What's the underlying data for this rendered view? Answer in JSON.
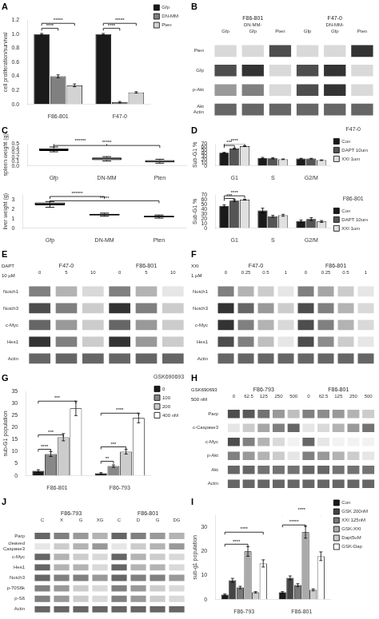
{
  "chart_data": [
    {
      "type": "bar",
      "title": "A",
      "categories": [
        "F86-801",
        "F47-0"
      ],
      "series": [
        {
          "name": "Gfp",
          "color": "#1a1a1a",
          "values": [
            1.0,
            1.0
          ],
          "errors": [
            0.01,
            0.01
          ]
        },
        {
          "name": "DN-MM",
          "color": "#808080",
          "values": [
            0.4,
            0.03
          ],
          "errors": [
            0.02,
            0.01
          ]
        },
        {
          "name": "Pten",
          "color": "#d3d3d3",
          "values": [
            0.27,
            0.17
          ],
          "errors": [
            0.02,
            0.01
          ]
        }
      ],
      "ylabel": "cell proliferation/survival",
      "ylim": [
        0,
        1.2
      ],
      "yticks": [
        {
          "value": 0,
          "label": "0.0"
        },
        0.2,
        0.4,
        0.6,
        0.8,
        {
          "value": 1.0,
          "label": "1.0"
        },
        1.2
      ],
      "grid": false,
      "legend": "right",
      "annotations": [
        {
          "group": "F86-801",
          "from": "Gfp",
          "to": "DN-MM",
          "y": 1.05,
          "text": "****"
        },
        {
          "group": "F86-801",
          "from": "Gfp",
          "to": "Pten",
          "y": 1.12,
          "text": "*****"
        },
        {
          "group": "F47-0",
          "from": "Gfp",
          "to": "DN-MM",
          "y": 1.05,
          "text": "****"
        },
        {
          "group": "F47-0",
          "from": "Gfp",
          "to": "Pten",
          "y": 1.12,
          "text": "*****"
        }
      ]
    },
    {
      "type": "blot",
      "title": "B",
      "groups": [
        "F86-801",
        "F47-0"
      ],
      "categories": [
        "Gfp",
        "DN-MM-\nGfp",
        "Pten",
        "Gfp",
        "DN-MM-\nGfp",
        "Pten"
      ],
      "rows": [
        "Pten",
        "Gfp",
        "p-Akt",
        "Akt\nActin"
      ],
      "cells": [
        [
          0.15,
          0.15,
          0.7,
          0.15,
          0.15,
          0.8
        ],
        [
          0.7,
          0.8,
          0.15,
          0.7,
          0.8,
          0.15
        ],
        [
          0.4,
          0.5,
          0.15,
          0.7,
          0.8,
          0.15
        ],
        [
          0.6,
          0.6,
          0.6,
          0.6,
          0.6,
          0.6
        ]
      ]
    },
    {
      "type": "box",
      "title": "C",
      "categories": [
        "Gfp",
        "DN-MM",
        "Pten"
      ],
      "medians": [
        0.37,
        0.16,
        0.1
      ],
      "q1": [
        0.34,
        0.13,
        0.08
      ],
      "q3": [
        0.4,
        0.19,
        0.13
      ],
      "whisker_low": [
        0.32,
        0.11,
        0.06
      ],
      "whisker_high": [
        0.43,
        0.21,
        0.15
      ],
      "ylabel": "spleen weight (g)",
      "ylim": [
        0.0,
        0.5
      ],
      "yticks": [
        {
          "value": 0.0,
          "label": "0.0"
        },
        0.1,
        0.2,
        0.3,
        0.4,
        0.5
      ],
      "grid": false,
      "annotations": [
        {
          "from": "Gfp",
          "to": "Pten",
          "y": 0.41,
          "text": "*****"
        },
        {
          "from": "Gfp",
          "to": "DN-MM",
          "y": 0.46,
          "text": "******"
        }
      ]
    },
    {
      "type": "box",
      "categories": [
        "Gfp",
        "DN-MM",
        "Pten"
      ],
      "medians": [
        2.55,
        1.42,
        1.22
      ],
      "q1": [
        2.4,
        1.35,
        1.15
      ],
      "q3": [
        2.7,
        1.5,
        1.3
      ],
      "whisker_low": [
        2.2,
        1.25,
        1.05
      ],
      "whisker_high": [
        2.8,
        1.58,
        1.38
      ],
      "ylabel": "liver weight (g)",
      "ylim": [
        0.0,
        3.5
      ],
      "yticks": [
        0,
        1,
        2,
        3
      ],
      "grid": false,
      "annotations": [
        {
          "from": "Gfp",
          "to": "Pten",
          "y": 2.625,
          "text": "*****"
        },
        {
          "from": "Gfp",
          "to": "DN-MM",
          "y": 3.08,
          "text": "******"
        }
      ]
    },
    {
      "type": "bar",
      "title": "D",
      "subtitle": "F47-0",
      "categories": [
        "G1",
        "S",
        "G2/M"
      ],
      "series": [
        {
          "name": "Con",
          "color": "#1a1a1a",
          "values": [
            42,
            25,
            23
          ],
          "errors": [
            1,
            2,
            1
          ]
        },
        {
          "name": "DAPT 10um",
          "color": "#555555",
          "values": [
            55,
            24,
            23
          ],
          "errors": [
            2,
            2,
            1
          ]
        },
        {
          "name": "XXI 1um",
          "color": "#e0e0e0",
          "values": [
            63,
            21,
            18
          ],
          "errors": [
            1,
            1,
            1
          ]
        }
      ],
      "ylabel": "Sub-G1 %",
      "ylim": [
        0,
        70
      ],
      "yticks": [
        0,
        10,
        20,
        30,
        40,
        50,
        60,
        70
      ],
      "grid": false,
      "legend": "right",
      "annotations": [
        {
          "group": "G1",
          "from": "Con",
          "to": "DAPT 10um",
          "y": 57.4,
          "text": "***"
        },
        {
          "group": "G1",
          "from": "Con",
          "to": "XXI 1um",
          "y": 63,
          "text": "****"
        }
      ]
    },
    {
      "type": "bar",
      "subtitle": "F86-801",
      "categories": [
        "G1",
        "S",
        "G2/M"
      ],
      "series": [
        {
          "name": "Con",
          "color": "#1a1a1a",
          "values": [
            47,
            37,
            15
          ],
          "errors": [
            2,
            5,
            2
          ]
        },
        {
          "name": "DAPT 10um",
          "color": "#555555",
          "values": [
            58,
            25,
            19
          ],
          "errors": [
            2,
            2,
            3
          ]
        },
        {
          "name": "XXI 1um",
          "color": "#e0e0e0",
          "values": [
            60,
            27,
            14
          ],
          "errors": [
            1,
            2,
            2
          ]
        }
      ],
      "ylabel": "Sub-G1 %",
      "ylim": [
        0,
        70
      ],
      "yticks": [
        0,
        10,
        20,
        30,
        40,
        50,
        60,
        70
      ],
      "grid": false,
      "legend": "right",
      "annotations": [
        {
          "group": "G1",
          "from": "Con",
          "to": "DAPT 10um",
          "y": 57.4,
          "text": "***"
        },
        {
          "group": "G1",
          "from": "Con",
          "to": "XXI 1um",
          "y": 63,
          "text": "****"
        }
      ]
    },
    {
      "type": "blot",
      "title": "E",
      "groups": [
        "F47-0",
        "F86-801"
      ],
      "categories": [
        "0",
        "5",
        "10",
        "0",
        "5",
        "10"
      ],
      "rows": [
        "Notch1",
        "Notch3",
        "c-Myc",
        "Hes1",
        "Actin"
      ],
      "cells": [
        [
          0.5,
          0.3,
          0.15,
          0.5,
          0.3,
          0.1
        ],
        [
          0.7,
          0.5,
          0.2,
          0.8,
          0.5,
          0.2
        ],
        [
          0.6,
          0.4,
          0.2,
          0.6,
          0.4,
          0.2
        ],
        [
          0.8,
          0.5,
          0.2,
          0.8,
          0.4,
          0.2
        ],
        [
          0.6,
          0.6,
          0.6,
          0.6,
          0.6,
          0.6
        ]
      ],
      "annotations": [
        {
          "text": "DAPT"
        },
        {
          "text": "10 µM"
        }
      ]
    },
    {
      "type": "blot",
      "title": "F",
      "groups": [
        "F47-0",
        "F86-801"
      ],
      "categories": [
        "0",
        "0.25",
        "0.5",
        "1",
        "0",
        "0.25",
        "0.5",
        "1"
      ],
      "rows": [
        "Notch1",
        "Notch3",
        "c-Myc",
        "Hes1",
        "Actin"
      ],
      "cells": [
        [
          0.5,
          0.3,
          0.2,
          0.1,
          0.5,
          0.35,
          0.2,
          0.1
        ],
        [
          0.8,
          0.6,
          0.4,
          0.2,
          0.7,
          0.5,
          0.3,
          0.15
        ],
        [
          0.8,
          0.5,
          0.3,
          0.15,
          0.7,
          0.5,
          0.3,
          0.15
        ],
        [
          0.7,
          0.5,
          0.25,
          0.1,
          0.7,
          0.45,
          0.2,
          0.1
        ],
        [
          0.6,
          0.6,
          0.6,
          0.6,
          0.6,
          0.6,
          0.6,
          0.6
        ]
      ],
      "annotations": [
        {
          "text": "XXI"
        },
        {
          "text": "1 µM"
        }
      ]
    },
    {
      "type": "bar",
      "title": "G",
      "subtitle": "GSK690693",
      "categories": [
        "F86-801",
        "F86-793"
      ],
      "series": [
        {
          "name": "0",
          "color": "#1a1a1a",
          "values": [
            2,
            1
          ],
          "errors": [
            0.5,
            0.3
          ]
        },
        {
          "name": "100",
          "color": "#888888",
          "values": [
            9,
            4
          ],
          "errors": [
            1,
            0.5
          ]
        },
        {
          "name": "200",
          "color": "#cccccc",
          "values": [
            16,
            10
          ],
          "errors": [
            1.5,
            1
          ]
        },
        {
          "name": "400 nM",
          "color": "#ffffff",
          "values": [
            28,
            24
          ],
          "errors": [
            3,
            2
          ]
        }
      ],
      "ylabel": "sub-G1 population",
      "ylim": [
        0,
        35
      ],
      "yticks": [
        0,
        5,
        10,
        15,
        20,
        25,
        30,
        35
      ],
      "grid": false,
      "legend": "right",
      "annotations": [
        {
          "group": "F86-801",
          "from": "0",
          "to": "100",
          "y": 10,
          "text": "****"
        },
        {
          "group": "F86-801",
          "from": "0",
          "to": "200",
          "y": 16,
          "text": "***"
        },
        {
          "group": "F86-801",
          "from": "0",
          "to": "400 nM",
          "y": 30,
          "text": "***"
        },
        {
          "group": "F86-793",
          "from": "0",
          "to": "100",
          "y": 5,
          "text": "**"
        },
        {
          "group": "F86-793",
          "from": "0",
          "to": "200",
          "y": 11,
          "text": "***"
        },
        {
          "group": "F86-793",
          "from": "0",
          "to": "400 nM",
          "y": 25,
          "text": "****"
        }
      ]
    },
    {
      "type": "blot",
      "title": "H",
      "groups": [
        "F86-793",
        "F86-801"
      ],
      "categories": [
        "0",
        "62.5",
        "125",
        "250",
        "500",
        "0",
        "62.5",
        "125",
        "250",
        "500"
      ],
      "rows": [
        "Parp",
        "c-Caspase3",
        "c-Myc",
        "p-Akt",
        "Akt",
        "Actin"
      ],
      "cells": [
        [
          0.7,
          0.65,
          0.55,
          0.4,
          0.25,
          0.5,
          0.45,
          0.4,
          0.3,
          0.2
        ],
        [
          0.1,
          0.2,
          0.35,
          0.5,
          0.6,
          0.1,
          0.15,
          0.3,
          0.4,
          0.55
        ],
        [
          0.7,
          0.5,
          0.3,
          0.15,
          0.05,
          0.6,
          0.1,
          0.05,
          0.05,
          0.05
        ],
        [
          0.5,
          0.4,
          0.3,
          0.2,
          0.1,
          0.5,
          0.4,
          0.3,
          0.2,
          0.1
        ],
        [
          0.6,
          0.6,
          0.55,
          0.55,
          0.55,
          0.6,
          0.6,
          0.55,
          0.55,
          0.55
        ],
        [
          0.6,
          0.6,
          0.6,
          0.6,
          0.6,
          0.6,
          0.6,
          0.6,
          0.6,
          0.6
        ]
      ],
      "annotations": [
        {
          "text": "GSK690693"
        },
        {
          "text": "500 nM"
        }
      ]
    },
    {
      "type": "blot",
      "title": "J",
      "groups": [
        "F86-793",
        "F86-801"
      ],
      "categories": [
        "C",
        "X",
        "G",
        "XG",
        "C",
        "D",
        "G",
        "DG"
      ],
      "rows": [
        "Parp",
        "cleaved\nCaspase3",
        "c-Myc",
        "Hes1",
        "Notch3",
        "p-70S6k",
        "p-S6",
        "Actin"
      ],
      "cells": [
        [
          0.6,
          0.5,
          0.4,
          0.3,
          0.6,
          0.5,
          0.4,
          0.3
        ],
        [
          0.1,
          0.2,
          0.3,
          0.4,
          0.1,
          0.2,
          0.3,
          0.4
        ],
        [
          0.6,
          0.3,
          0.2,
          0.15,
          0.6,
          0.3,
          0.2,
          0.15
        ],
        [
          0.6,
          0.3,
          0.3,
          0.15,
          0.6,
          0.3,
          0.3,
          0.15
        ],
        [
          0.6,
          0.5,
          0.5,
          0.4,
          0.6,
          0.5,
          0.5,
          0.4
        ],
        [
          0.5,
          0.4,
          0.2,
          0.15,
          0.5,
          0.4,
          0.2,
          0.15
        ],
        [
          0.5,
          0.4,
          0.2,
          0.15,
          0.5,
          0.4,
          0.2,
          0.15
        ],
        [
          0.6,
          0.6,
          0.6,
          0.6,
          0.6,
          0.6,
          0.6,
          0.6
        ]
      ]
    },
    {
      "type": "bar",
      "title": "I",
      "categories": [
        "F86-793",
        "F86-801"
      ],
      "series": [
        {
          "name": "Con",
          "color": "#1a1a1a",
          "values": [
            2,
            3
          ],
          "errors": [
            0.3,
            0.3
          ]
        },
        {
          "name": "GSK 200nM",
          "color": "#444444",
          "values": [
            8,
            9
          ],
          "errors": [
            0.8,
            0.8
          ]
        },
        {
          "name": "XXI 125nM",
          "color": "#777777",
          "values": [
            5,
            6
          ],
          "errors": [
            0.5,
            0.6
          ]
        },
        {
          "name": "GSK-XXI",
          "color": "#aaaaaa",
          "values": [
            20,
            28
          ],
          "errors": [
            2,
            2.5
          ]
        },
        {
          "name": "Dapt5uM",
          "color": "#cccccc",
          "values": [
            3,
            4
          ],
          "errors": [
            0.3,
            0.4
          ]
        },
        {
          "name": "GSK-Dap",
          "color": "#ffffff",
          "values": [
            15,
            18
          ],
          "errors": [
            1.5,
            1.8
          ]
        }
      ],
      "ylabel": "sub-g1 population",
      "ylim": [
        0,
        35
      ],
      "yticks": [
        0,
        10,
        20,
        30
      ],
      "grid": false,
      "legend": "right",
      "annotations": [
        {
          "group": "F86-793",
          "from": "Con",
          "to": "GSK-XXI",
          "y": 22,
          "text": "****"
        },
        {
          "group": "F86-801",
          "from": "Con",
          "to": "GSK-XXI",
          "y": 30,
          "text": "*****"
        },
        {
          "group": "F86-793",
          "from": "Con",
          "to": "GSK-Dap",
          "y": 27,
          "text": "****"
        },
        {
          "group": "F86-801",
          "from": "Con",
          "to": "GSK-Dap",
          "y": 35,
          "text": "****"
        }
      ]
    }
  ]
}
